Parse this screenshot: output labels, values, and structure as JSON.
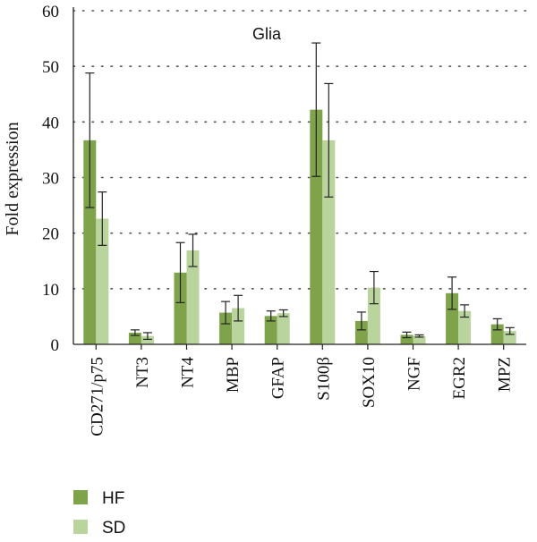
{
  "chart_data": {
    "type": "bar",
    "title": "",
    "annotation": "Glia",
    "xlabel": "",
    "ylabel": "Fold expression",
    "ylim": [
      0,
      60
    ],
    "yticks": [
      "0",
      "10",
      "20",
      "30",
      "40",
      "50",
      "60"
    ],
    "grid": "horizontal-dotted",
    "categories": [
      "CD271/p75",
      "NT3",
      "NT4",
      "MBP",
      "GFAP",
      "S100β",
      "SOX10",
      "NGF",
      "EGR2",
      "MPZ"
    ],
    "series": [
      {
        "name": "HF",
        "color": "#7fa34a",
        "values": [
          36.7,
          2.1,
          12.9,
          5.7,
          5.1,
          42.2,
          4.2,
          1.7,
          9.2,
          3.6
        ],
        "errors": [
          12.1,
          0.5,
          5.4,
          2.0,
          0.9,
          12.0,
          1.6,
          0.5,
          2.9,
          1.0
        ]
      },
      {
        "name": "SD",
        "color": "#b9d49c",
        "values": [
          22.6,
          1.5,
          16.9,
          6.5,
          5.6,
          36.7,
          10.2,
          1.5,
          6.0,
          2.4
        ],
        "errors": [
          4.8,
          0.6,
          2.9,
          2.3,
          0.6,
          10.2,
          2.9,
          0.2,
          1.1,
          0.6
        ]
      }
    ],
    "legend": {
      "placement": "bottom-left",
      "entries": [
        "HF",
        "SD"
      ]
    }
  }
}
